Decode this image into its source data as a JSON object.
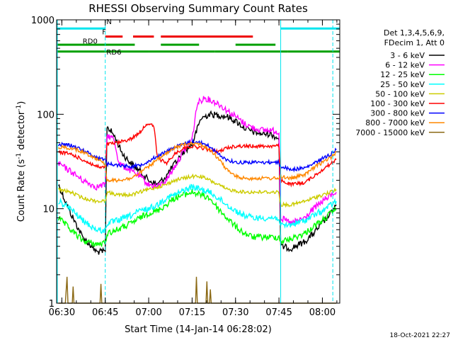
{
  "chart_data": {
    "type": "line",
    "title": "RHESSI Observing Summary Count Rates",
    "xlabel": "Start Time (14-Jan-14 06:28:02)",
    "ylabel": "Count Rate (s",
    "ylabel_sup1": "-1",
    "ylabel_mid": " detector",
    "ylabel_sup2": "-1",
    "ylabel_end": ")",
    "y_scale": "log",
    "ylim": [
      1,
      1000
    ],
    "xlim_minutes": [
      6.47,
      8.1
    ],
    "x_ticks": [
      {
        "t": 6.5,
        "label": "06:30"
      },
      {
        "t": 6.75,
        "label": "06:45"
      },
      {
        "t": 7.0,
        "label": "07:00"
      },
      {
        "t": 7.25,
        "label": "07:15"
      },
      {
        "t": 7.5,
        "label": "07:30"
      },
      {
        "t": 7.75,
        "label": "07:45"
      },
      {
        "t": 8.0,
        "label": "08:00"
      }
    ],
    "y_ticks": [
      {
        "v": 1,
        "label": "1"
      },
      {
        "v": 10,
        "label": "10"
      },
      {
        "v": 100,
        "label": "100"
      },
      {
        "v": 1000,
        "label": "1000"
      }
    ],
    "legend_header": [
      "Det 1,3,4,5,6,9,",
      "FDecim 1, Att 0"
    ],
    "legend_position": "right",
    "timestamp": "18-Oct-2021 22:27",
    "flag_labels": {
      "saa": "N",
      "flare": "F",
      "rd0": "RD0",
      "rd6": "RD6"
    },
    "flags": [
      {
        "name": "saa",
        "color": "#00e5ee",
        "level": 810,
        "segments": [
          [
            6.47,
            6.75
          ],
          [
            7.76,
            8.1
          ]
        ]
      },
      {
        "name": "flare",
        "color": "#ee0000",
        "level": 665,
        "segments": [
          [
            6.75,
            6.85
          ],
          [
            6.91,
            7.03
          ],
          [
            7.07,
            7.6
          ]
        ]
      },
      {
        "name": "rd0",
        "color": "#00a000",
        "level": 545,
        "segments": [
          [
            6.47,
            6.92
          ],
          [
            7.07,
            7.29
          ],
          [
            7.5,
            7.73
          ]
        ]
      },
      {
        "name": "rd6",
        "color": "#00a000",
        "level": 462,
        "segments": [
          [
            6.47,
            6.75
          ],
          [
            6.75,
            7.0
          ],
          [
            7.0,
            7.38
          ],
          [
            7.38,
            7.8
          ],
          [
            7.8,
            8.1
          ]
        ]
      }
    ],
    "night_markers": [
      6.75,
      7.76,
      8.06
    ],
    "series": [
      {
        "name": "3 - 6 keV",
        "color": "#000000",
        "points": [
          [
            6.48,
            18
          ],
          [
            6.55,
            9
          ],
          [
            6.62,
            5
          ],
          [
            6.7,
            3.5
          ],
          [
            6.75,
            3.5
          ],
          [
            6.76,
            75
          ],
          [
            6.8,
            60
          ],
          [
            6.85,
            38
          ],
          [
            6.9,
            30
          ],
          [
            6.95,
            25
          ],
          [
            7.0,
            20
          ],
          [
            7.05,
            18
          ],
          [
            7.1,
            22
          ],
          [
            7.15,
            30
          ],
          [
            7.2,
            40
          ],
          [
            7.25,
            48
          ],
          [
            7.3,
            90
          ],
          [
            7.35,
            100
          ],
          [
            7.4,
            98
          ],
          [
            7.45,
            95
          ],
          [
            7.5,
            85
          ],
          [
            7.55,
            72
          ],
          [
            7.6,
            65
          ],
          [
            7.65,
            62
          ],
          [
            7.7,
            62
          ],
          [
            7.75,
            55
          ],
          [
            7.76,
            4
          ],
          [
            7.82,
            3.8
          ],
          [
            7.9,
            4.5
          ],
          [
            7.95,
            5.5
          ],
          [
            8.0,
            7
          ],
          [
            8.05,
            9
          ],
          [
            8.08,
            11
          ]
        ]
      },
      {
        "name": "6 - 12 keV",
        "color": "#ff00ff",
        "points": [
          [
            6.48,
            30
          ],
          [
            6.55,
            25
          ],
          [
            6.62,
            20
          ],
          [
            6.7,
            17
          ],
          [
            6.75,
            18
          ],
          [
            6.76,
            60
          ],
          [
            6.8,
            55
          ],
          [
            6.83,
            30
          ],
          [
            6.9,
            25
          ],
          [
            6.95,
            22
          ],
          [
            7.0,
            18
          ],
          [
            7.05,
            17
          ],
          [
            7.1,
            20
          ],
          [
            7.15,
            28
          ],
          [
            7.2,
            40
          ],
          [
            7.25,
            55
          ],
          [
            7.28,
            130
          ],
          [
            7.32,
            150
          ],
          [
            7.4,
            130
          ],
          [
            7.45,
            110
          ],
          [
            7.5,
            95
          ],
          [
            7.55,
            80
          ],
          [
            7.6,
            72
          ],
          [
            7.65,
            68
          ],
          [
            7.7,
            68
          ],
          [
            7.75,
            65
          ],
          [
            7.76,
            8
          ],
          [
            7.82,
            7
          ],
          [
            7.9,
            8
          ],
          [
            7.95,
            10
          ],
          [
            8.0,
            12
          ],
          [
            8.05,
            14
          ],
          [
            8.08,
            15
          ]
        ]
      },
      {
        "name": "12 - 25 keV",
        "color": "#00ff00",
        "points": [
          [
            6.48,
            8
          ],
          [
            6.55,
            6
          ],
          [
            6.62,
            4.6
          ],
          [
            6.7,
            4.2
          ],
          [
            6.75,
            4.3
          ],
          [
            6.76,
            5.5
          ],
          [
            6.82,
            6
          ],
          [
            6.9,
            7
          ],
          [
            6.95,
            8
          ],
          [
            7.0,
            9
          ],
          [
            7.05,
            9.5
          ],
          [
            7.1,
            11
          ],
          [
            7.15,
            13
          ],
          [
            7.2,
            14
          ],
          [
            7.25,
            15
          ],
          [
            7.3,
            14
          ],
          [
            7.35,
            13
          ],
          [
            7.4,
            10
          ],
          [
            7.45,
            8
          ],
          [
            7.5,
            6.5
          ],
          [
            7.55,
            5.5
          ],
          [
            7.6,
            5
          ],
          [
            7.65,
            5
          ],
          [
            7.7,
            5
          ],
          [
            7.75,
            5
          ],
          [
            7.76,
            4.5
          ],
          [
            7.82,
            4.8
          ],
          [
            7.9,
            5.5
          ],
          [
            7.95,
            6.5
          ],
          [
            8.0,
            7.5
          ],
          [
            8.05,
            9
          ],
          [
            8.08,
            10
          ]
        ]
      },
      {
        "name": "25 - 50 keV",
        "color": "#00ffff",
        "points": [
          [
            6.48,
            12
          ],
          [
            6.55,
            10
          ],
          [
            6.62,
            7.5
          ],
          [
            6.7,
            6
          ],
          [
            6.75,
            5.8
          ],
          [
            6.76,
            7
          ],
          [
            6.82,
            7.5
          ],
          [
            6.9,
            8.5
          ],
          [
            6.95,
            9.5
          ],
          [
            7.0,
            10
          ],
          [
            7.05,
            11
          ],
          [
            7.1,
            13
          ],
          [
            7.15,
            14
          ],
          [
            7.2,
            15.5
          ],
          [
            7.25,
            17
          ],
          [
            7.3,
            16
          ],
          [
            7.35,
            15
          ],
          [
            7.4,
            13
          ],
          [
            7.45,
            11
          ],
          [
            7.5,
            9.5
          ],
          [
            7.55,
            8.5
          ],
          [
            7.6,
            8
          ],
          [
            7.65,
            8
          ],
          [
            7.7,
            8
          ],
          [
            7.75,
            8
          ],
          [
            7.76,
            6.5
          ],
          [
            7.82,
            6.8
          ],
          [
            7.9,
            7.5
          ],
          [
            7.95,
            8.5
          ],
          [
            8.0,
            9.5
          ],
          [
            8.05,
            11
          ],
          [
            8.08,
            12
          ]
        ]
      },
      {
        "name": "50 - 100 keV",
        "color": "#cccc00",
        "points": [
          [
            6.48,
            16
          ],
          [
            6.55,
            15
          ],
          [
            6.62,
            13
          ],
          [
            6.7,
            12
          ],
          [
            6.75,
            12
          ],
          [
            6.76,
            15
          ],
          [
            6.82,
            14
          ],
          [
            6.9,
            14
          ],
          [
            6.95,
            15
          ],
          [
            7.0,
            16
          ],
          [
            7.05,
            17
          ],
          [
            7.1,
            18
          ],
          [
            7.15,
            20
          ],
          [
            7.2,
            21
          ],
          [
            7.25,
            22
          ],
          [
            7.3,
            22
          ],
          [
            7.35,
            20
          ],
          [
            7.4,
            18
          ],
          [
            7.45,
            16
          ],
          [
            7.5,
            15.5
          ],
          [
            7.55,
            15
          ],
          [
            7.6,
            15
          ],
          [
            7.65,
            15
          ],
          [
            7.7,
            15
          ],
          [
            7.75,
            15
          ],
          [
            7.76,
            11
          ],
          [
            7.82,
            11
          ],
          [
            7.9,
            12
          ],
          [
            7.95,
            13
          ],
          [
            8.0,
            14
          ],
          [
            8.05,
            15
          ],
          [
            8.08,
            16
          ]
        ]
      },
      {
        "name": "100 - 300 keV",
        "color": "#ff0000",
        "points": [
          [
            6.48,
            40
          ],
          [
            6.55,
            38
          ],
          [
            6.62,
            33
          ],
          [
            6.7,
            28
          ],
          [
            6.75,
            27
          ],
          [
            6.76,
            48
          ],
          [
            6.82,
            50
          ],
          [
            6.9,
            55
          ],
          [
            6.95,
            65
          ],
          [
            6.99,
            80
          ],
          [
            7.03,
            75
          ],
          [
            7.05,
            35
          ],
          [
            7.1,
            30
          ],
          [
            7.15,
            38
          ],
          [
            7.2,
            44
          ],
          [
            7.25,
            46
          ],
          [
            7.3,
            44
          ],
          [
            7.35,
            42
          ],
          [
            7.4,
            40
          ],
          [
            7.45,
            44
          ],
          [
            7.5,
            46
          ],
          [
            7.55,
            46
          ],
          [
            7.6,
            46
          ],
          [
            7.65,
            46
          ],
          [
            7.7,
            46
          ],
          [
            7.75,
            46
          ],
          [
            7.76,
            20
          ],
          [
            7.82,
            18
          ],
          [
            7.9,
            19
          ],
          [
            7.95,
            22
          ],
          [
            8.0,
            26
          ],
          [
            8.05,
            30
          ],
          [
            8.08,
            33
          ]
        ]
      },
      {
        "name": "300 - 800 keV",
        "color": "#0000ff",
        "points": [
          [
            6.48,
            48
          ],
          [
            6.55,
            47
          ],
          [
            6.62,
            42
          ],
          [
            6.7,
            35
          ],
          [
            6.75,
            33
          ],
          [
            6.76,
            30
          ],
          [
            6.82,
            29
          ],
          [
            6.9,
            28
          ],
          [
            6.95,
            29
          ],
          [
            7.0,
            32
          ],
          [
            7.05,
            36
          ],
          [
            7.1,
            40
          ],
          [
            7.15,
            45
          ],
          [
            7.2,
            48
          ],
          [
            7.25,
            52
          ],
          [
            7.3,
            50
          ],
          [
            7.35,
            46
          ],
          [
            7.4,
            38
          ],
          [
            7.45,
            33
          ],
          [
            7.5,
            31
          ],
          [
            7.55,
            31
          ],
          [
            7.6,
            31
          ],
          [
            7.65,
            31
          ],
          [
            7.7,
            31
          ],
          [
            7.75,
            31
          ],
          [
            7.76,
            28
          ],
          [
            7.82,
            26
          ],
          [
            7.9,
            27
          ],
          [
            7.95,
            30
          ],
          [
            8.0,
            34
          ],
          [
            8.05,
            38
          ],
          [
            8.08,
            42
          ]
        ]
      },
      {
        "name": "800 - 7000 keV",
        "color": "#ff8800",
        "points": [
          [
            6.48,
            45
          ],
          [
            6.55,
            44
          ],
          [
            6.62,
            40
          ],
          [
            6.7,
            34
          ],
          [
            6.75,
            30
          ],
          [
            6.76,
            20
          ],
          [
            6.82,
            20
          ],
          [
            6.9,
            21
          ],
          [
            6.95,
            24
          ],
          [
            7.0,
            28
          ],
          [
            7.05,
            33
          ],
          [
            7.1,
            38
          ],
          [
            7.15,
            44
          ],
          [
            7.2,
            48
          ],
          [
            7.25,
            50
          ],
          [
            7.3,
            48
          ],
          [
            7.35,
            42
          ],
          [
            7.4,
            34
          ],
          [
            7.45,
            26
          ],
          [
            7.5,
            22
          ],
          [
            7.55,
            21
          ],
          [
            7.6,
            21
          ],
          [
            7.65,
            21
          ],
          [
            7.7,
            21
          ],
          [
            7.75,
            21
          ],
          [
            7.76,
            22
          ],
          [
            7.82,
            21
          ],
          [
            7.9,
            23
          ],
          [
            7.95,
            27
          ],
          [
            8.0,
            31
          ],
          [
            8.05,
            35
          ],
          [
            8.08,
            40
          ]
        ]
      },
      {
        "name": "7000 - 15000 keV",
        "color": "#8b6914",
        "points": [
          [
            6.48,
            1
          ],
          [
            6.52,
            1
          ],
          [
            6.53,
            1.9
          ],
          [
            6.535,
            1
          ],
          [
            6.56,
            1
          ],
          [
            6.565,
            1.5
          ],
          [
            6.57,
            1
          ],
          [
            6.72,
            1
          ],
          [
            6.725,
            1.6
          ],
          [
            6.73,
            1
          ],
          [
            7.27,
            1
          ],
          [
            7.275,
            1.9
          ],
          [
            7.28,
            1
          ],
          [
            7.33,
            1
          ],
          [
            7.335,
            1.7
          ],
          [
            7.34,
            1
          ],
          [
            7.35,
            1
          ],
          [
            7.355,
            1.4
          ],
          [
            7.36,
            1
          ],
          [
            8.08,
            1
          ]
        ]
      }
    ]
  }
}
